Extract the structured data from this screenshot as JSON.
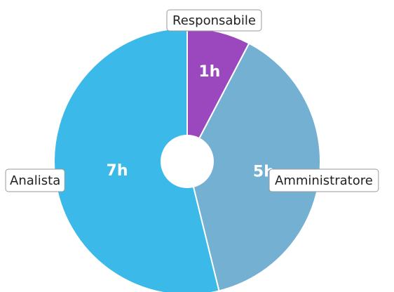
{
  "chart_data": {
    "type": "pie",
    "donut": true,
    "title": "",
    "unit_suffix": "h",
    "slices": [
      {
        "label": "Responsabile",
        "value": 1,
        "display": "1h",
        "color": "#9b48bf"
      },
      {
        "label": "Amministratore",
        "value": 5,
        "display": "5h",
        "color": "#73b0d1"
      },
      {
        "label": "Analista",
        "value": 7,
        "display": "7h",
        "color": "#3bb9e8"
      }
    ],
    "legend": "none",
    "label_style": "callout boxes outside, values inside slices"
  }
}
